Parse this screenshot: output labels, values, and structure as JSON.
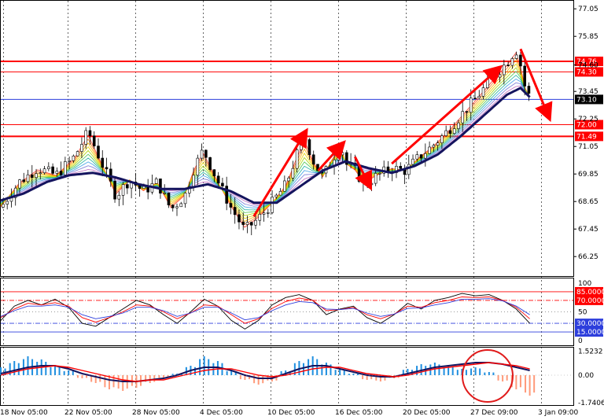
{
  "chart_data": [
    {
      "type": "candlestick",
      "panel": "price",
      "ylim": [
        65.4,
        77.4
      ],
      "yticks": [
        77.05,
        75.85,
        74.6,
        73.45,
        72.25,
        71.05,
        69.85,
        68.65,
        67.45,
        66.25
      ],
      "xticks": [
        "18 Nov 05:00",
        "22 Nov 05:00",
        "28 Nov 05:00",
        "4 Dec 05:00",
        "10 Dec 05:00",
        "16 Dec 05:00",
        "20 Dec 05:00",
        "27 Dec 09:00",
        "3 Jan 09:00"
      ],
      "hlines": [
        {
          "value": 74.76,
          "label": "74.76",
          "color": "#ff0000",
          "width": 2
        },
        {
          "value": 74.3,
          "label": "74.30",
          "color": "#ff0000",
          "width": 1
        },
        {
          "value": 73.1,
          "label": "73.10",
          "color": "#2d3edc",
          "width": 1,
          "current": true
        },
        {
          "value": 72.0,
          "label": "72.00",
          "color": "#ff0000",
          "width": 1
        },
        {
          "value": 71.49,
          "label": "71.49",
          "color": "#ff0000",
          "width": 2
        }
      ],
      "close_path": [
        [
          0,
          68.4
        ],
        [
          4,
          69.5
        ],
        [
          8,
          70.1
        ],
        [
          12,
          69.8
        ],
        [
          16,
          70.6
        ],
        [
          19,
          71.7
        ],
        [
          22,
          70.3
        ],
        [
          25,
          68.9
        ],
        [
          28,
          69.6
        ],
        [
          31,
          69.1
        ],
        [
          34,
          69.5
        ],
        [
          37,
          68.3
        ],
        [
          40,
          68.9
        ],
        [
          42,
          70.1
        ],
        [
          44,
          70.9
        ],
        [
          47,
          69.6
        ],
        [
          50,
          68.4
        ],
        [
          53,
          67.4
        ],
        [
          56,
          67.9
        ],
        [
          59,
          68.6
        ],
        [
          62,
          69.4
        ],
        [
          64,
          70.5
        ],
        [
          66,
          71.5
        ],
        [
          68,
          70.4
        ],
        [
          70,
          69.7
        ],
        [
          72,
          70.5
        ],
        [
          74,
          71.1
        ],
        [
          75,
          70.3
        ],
        [
          77,
          70.0
        ],
        [
          79,
          69.4
        ],
        [
          82,
          69.8
        ],
        [
          85,
          70.1
        ],
        [
          88,
          70.0
        ],
        [
          91,
          70.6
        ],
        [
          94,
          71.1
        ],
        [
          97,
          71.7
        ],
        [
          100,
          72.4
        ],
        [
          103,
          73.1
        ],
        [
          106,
          73.8
        ],
        [
          108,
          74.3
        ],
        [
          110,
          74.7
        ],
        [
          112,
          75.3
        ],
        [
          113,
          74.6
        ],
        [
          114,
          73.6
        ],
        [
          115,
          73.2
        ]
      ],
      "ma_thick_path": [
        [
          0,
          68.7
        ],
        [
          5,
          69.0
        ],
        [
          10,
          69.5
        ],
        [
          15,
          69.8
        ],
        [
          20,
          69.9
        ],
        [
          25,
          69.7
        ],
        [
          30,
          69.4
        ],
        [
          35,
          69.2
        ],
        [
          40,
          69.2
        ],
        [
          45,
          69.4
        ],
        [
          50,
          69.1
        ],
        [
          55,
          68.6
        ],
        [
          60,
          68.6
        ],
        [
          65,
          69.3
        ],
        [
          70,
          70.0
        ],
        [
          75,
          70.4
        ],
        [
          80,
          70.1
        ],
        [
          85,
          69.9
        ],
        [
          90,
          70.2
        ],
        [
          95,
          70.7
        ],
        [
          100,
          71.5
        ],
        [
          105,
          72.4
        ],
        [
          110,
          73.3
        ],
        [
          113,
          73.6
        ],
        [
          115,
          73.2
        ]
      ],
      "trend_arrows": [
        {
          "from": [
            55,
            68.0
          ],
          "to": [
            66,
            71.6
          ]
        },
        {
          "from": [
            69,
            70.0
          ],
          "to": [
            74,
            71.1
          ]
        },
        {
          "from": [
            77,
            70.6
          ],
          "to": [
            80,
            69.4
          ]
        },
        {
          "from": [
            85,
            70.3
          ],
          "to": [
            108,
            74.4
          ]
        },
        {
          "from": [
            113,
            75.3
          ],
          "to": [
            119,
            72.4
          ]
        }
      ]
    },
    {
      "type": "line",
      "panel": "stochastic",
      "ylim": [
        0,
        100
      ],
      "yticks": [
        100,
        85.0,
        70.0,
        50,
        30.0,
        15.0,
        0
      ],
      "ytick_labels": [
        "100",
        "85.0000",
        "70.0000",
        "50",
        "30.0000",
        "15.0000",
        "0"
      ],
      "levels": [
        {
          "value": 85,
          "label": "85.0000",
          "color": "#ff0000",
          "style": "solid"
        },
        {
          "value": 70,
          "label": "70.0000",
          "color": "#ff0000",
          "style": "dashdot"
        },
        {
          "value": 50,
          "label": "",
          "color": "#999999",
          "style": "dotted"
        },
        {
          "value": 30,
          "label": "30.0000",
          "color": "#2d3edc",
          "style": "dashdot"
        },
        {
          "value": 15,
          "label": "15.0000",
          "color": "#2d3edc",
          "style": "solid"
        }
      ],
      "series": [
        {
          "values": [
            35,
            60,
            70,
            62,
            72,
            58,
            30,
            25,
            40,
            55,
            70,
            62,
            45,
            30,
            50,
            72,
            60,
            35,
            20,
            35,
            62,
            75,
            80,
            70,
            45,
            55,
            60,
            40,
            30,
            45,
            65,
            55,
            70,
            75,
            82,
            78,
            80,
            70,
            55,
            30
          ],
          "color": "#000000"
        },
        {
          "values": [
            40,
            55,
            65,
            62,
            66,
            60,
            40,
            32,
            40,
            50,
            62,
            60,
            50,
            38,
            48,
            62,
            60,
            45,
            30,
            38,
            56,
            68,
            74,
            70,
            52,
            54,
            58,
            45,
            38,
            46,
            60,
            58,
            66,
            70,
            76,
            75,
            76,
            70,
            58,
            38
          ],
          "color": "#ff0000"
        },
        {
          "values": [
            42,
            52,
            60,
            60,
            62,
            58,
            45,
            38,
            42,
            48,
            58,
            58,
            52,
            42,
            48,
            58,
            58,
            48,
            36,
            40,
            52,
            62,
            68,
            66,
            55,
            54,
            56,
            48,
            42,
            46,
            56,
            57,
            62,
            66,
            72,
            72,
            73,
            69,
            60,
            45
          ],
          "color": "#2d3edc"
        }
      ]
    },
    {
      "type": "bar",
      "panel": "macd",
      "ylim": [
        -1.9,
        1.75
      ],
      "yticks": [
        1.5232,
        0.0,
        -1.7406
      ],
      "ytick_labels": [
        "1.5232",
        "0.00",
        "-1.7406"
      ],
      "histogram": [
        0.5,
        0.9,
        1.2,
        1.0,
        0.6,
        0.3,
        -0.2,
        -0.5,
        -0.9,
        -1.0,
        -0.8,
        -0.5,
        -0.2,
        0.1,
        0.6,
        1.2,
        0.9,
        0.3,
        -0.3,
        -0.6,
        -0.4,
        0.3,
        0.9,
        1.2,
        0.8,
        0.4,
        0.1,
        -0.3,
        -0.4,
        -0.2,
        0.4,
        0.7,
        0.8,
        0.6,
        0.4,
        0.5,
        0.2,
        -0.4,
        -0.9,
        -1.3
      ],
      "line_values": [
        0.1,
        0.3,
        0.5,
        0.6,
        0.6,
        0.4,
        0.1,
        -0.1,
        -0.3,
        -0.4,
        -0.4,
        -0.3,
        -0.2,
        0.0,
        0.3,
        0.5,
        0.5,
        0.3,
        0.0,
        -0.2,
        -0.2,
        0.1,
        0.4,
        0.6,
        0.6,
        0.4,
        0.2,
        0.0,
        -0.1,
        -0.1,
        0.1,
        0.3,
        0.5,
        0.6,
        0.7,
        0.8,
        0.8,
        0.7,
        0.5,
        0.3
      ],
      "signal_values": [
        0.0,
        0.2,
        0.4,
        0.5,
        0.6,
        0.5,
        0.3,
        0.1,
        -0.1,
        -0.3,
        -0.4,
        -0.3,
        -0.3,
        -0.1,
        0.1,
        0.3,
        0.4,
        0.4,
        0.2,
        0.0,
        -0.1,
        0.0,
        0.2,
        0.4,
        0.5,
        0.5,
        0.3,
        0.1,
        0.0,
        -0.1,
        0.0,
        0.2,
        0.4,
        0.5,
        0.6,
        0.7,
        0.8,
        0.7,
        0.6,
        0.4
      ],
      "highlight": "ellipse around latest bars"
    }
  ]
}
